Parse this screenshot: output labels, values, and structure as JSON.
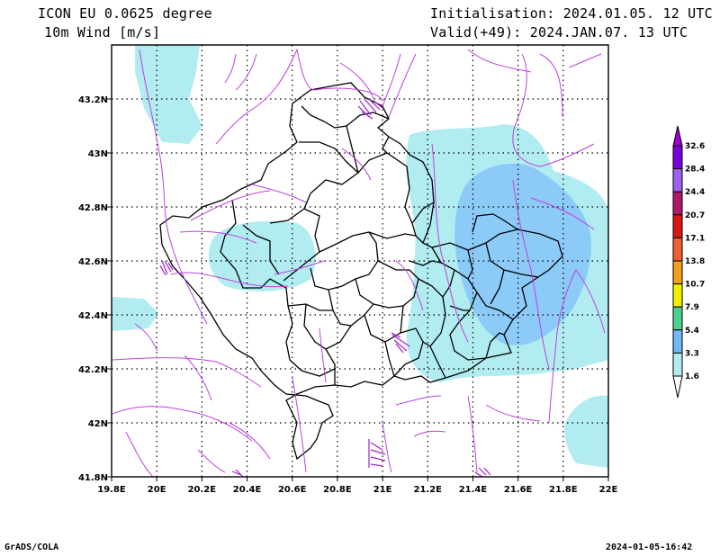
{
  "header": {
    "model": "ICON EU 0.0625 degree",
    "variable": "10m Wind [m/s]",
    "init": "Initialisation: 2024.01.05. 12 UTC",
    "valid": "Valid(+49): 2024.JAN.07. 13 UTC"
  },
  "footer": {
    "left": "GrADS/COLA",
    "right": "2024-01-05-16:42"
  },
  "map": {
    "lon_range": [
      19.8,
      22.0
    ],
    "lat_range": [
      41.8,
      43.4
    ],
    "x_ticks": [
      "19.8E",
      "20E",
      "20.2E",
      "20.4E",
      "20.6E",
      "20.8E",
      "21E",
      "21.2E",
      "21.4E",
      "21.6E",
      "21.8E",
      "22E"
    ],
    "y_ticks": [
      "41.8N",
      "42N",
      "42.2N",
      "42.4N",
      "42.6N",
      "42.8N",
      "43N",
      "43.2N"
    ],
    "gridlines": "dotted"
  },
  "colorbar": {
    "labels": [
      "32.6",
      "28.4",
      "24.4",
      "20.7",
      "17.1",
      "13.8",
      "10.7",
      "7.9",
      "5.4",
      "3.3",
      "1.6"
    ],
    "colors": [
      "#7a00d8",
      "#a060f0",
      "#b0186a",
      "#d81818",
      "#f06030",
      "#f0a020",
      "#f0f000",
      "#50d090",
      "#70b8f8",
      "#b0ecf0"
    ],
    "top_color": "#a000d0",
    "bottom_color": "#ffffff"
  }
}
